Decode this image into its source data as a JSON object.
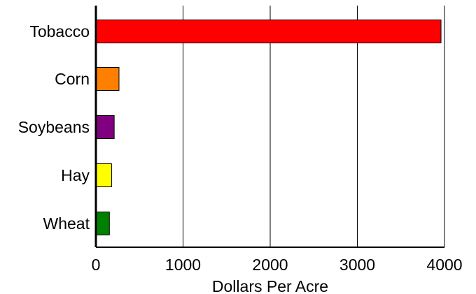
{
  "chart_data": {
    "type": "bar",
    "orientation": "horizontal",
    "categories": [
      "Tobacco",
      "Corn",
      "Soybeans",
      "Hay",
      "Wheat"
    ],
    "values": [
      3960,
      265,
      210,
      180,
      155
    ],
    "colors": [
      "#ff0000",
      "#ff8000",
      "#800080",
      "#ffff00",
      "#008000"
    ],
    "xlabel": "Dollars Per Acre",
    "ylabel": "",
    "xlim": [
      0,
      4000
    ],
    "xticks": [
      0,
      1000,
      2000,
      3000,
      4000
    ],
    "xtick_labels": [
      "0",
      "1000",
      "2000",
      "3000",
      "4000"
    ],
    "grid": "vertical",
    "legend": "none"
  }
}
